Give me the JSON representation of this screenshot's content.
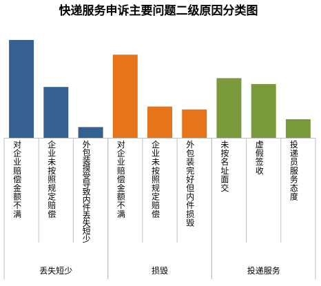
{
  "chart_data": {
    "type": "bar",
    "title": "快递服务申诉主要问题二级原因分类图",
    "ylim": [
      0,
      100
    ],
    "grid": false,
    "legend": "none",
    "groups": [
      {
        "name": "丢失短少",
        "color": "#35608F",
        "categories": [
          "对企业赔偿金额不满",
          "企业未按照规定赔偿",
          "外包装摸受导致内件丢失短少"
        ],
        "values": [
          100,
          52,
          11
        ]
      },
      {
        "name": "损毁",
        "color": "#E8741A",
        "categories": [
          "对企业赔偿金额不满",
          "企业未按照规定赔偿",
          "外包装完好但内件损毁"
        ],
        "values": [
          85,
          32,
          29
        ]
      },
      {
        "name": "投递服务",
        "color": "#7A9A3C",
        "categories": [
          "未按名址面交",
          "虚假签收",
          "投递员服务态度"
        ],
        "values": [
          61,
          55,
          19
        ]
      }
    ]
  }
}
